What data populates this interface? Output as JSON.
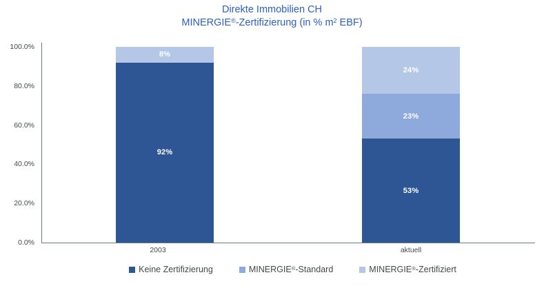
{
  "title": {
    "line1": "Direkte Immobilien CH",
    "line2_parts": [
      {
        "text": "MINERGIE"
      },
      {
        "sup": "®"
      },
      {
        "text": "-Zertifizierung (in % m"
      },
      {
        "sup": "2"
      },
      {
        "text": " EBF)"
      }
    ]
  },
  "legend": {
    "items": [
      {
        "color": "#2F5694",
        "parts": [
          {
            "text": "Keine Zertifizierung"
          }
        ]
      },
      {
        "color": "#8EA9DB",
        "parts": [
          {
            "text": "MINERGIE"
          },
          {
            "sup": "®"
          },
          {
            "text": "-Standard"
          }
        ]
      },
      {
        "color": "#B4C7E7",
        "parts": [
          {
            "text": "MINERGIE"
          },
          {
            "sup": "®"
          },
          {
            "text": "-Zertifiziert"
          }
        ]
      }
    ]
  },
  "colors": {
    "title": "#2B5EC6",
    "axis_line": "#6b7d78",
    "tick_text": "#414a46",
    "dark_blue": "#2F5694",
    "medium_blue": "#8EA9DB",
    "light_blue": "#B4C7E7"
  },
  "chart_data": {
    "type": "bar",
    "stacked": true,
    "title": "Direkte Immobilien CH MINERGIE®-Zertifizierung (in % m² EBF)",
    "categories": [
      "2003",
      "aktuell"
    ],
    "series": [
      {
        "name": "Keine Zertifizierung",
        "color": "#2F5694",
        "values": [
          92,
          53
        ],
        "labels": [
          "92%",
          "53%"
        ]
      },
      {
        "name": "MINERGIE®-Standard",
        "color": "#8EA9DB",
        "values": [
          0,
          23
        ],
        "labels": [
          "",
          "23%"
        ]
      },
      {
        "name": "MINERGIE®-Zertifiziert",
        "color": "#B4C7E7",
        "values": [
          8,
          24
        ],
        "labels": [
          "8%",
          "24%"
        ]
      }
    ],
    "xlabel": "",
    "ylabel": "",
    "ylim": [
      0,
      100
    ],
    "yticks": [
      "0.0%",
      "20.0%",
      "40.0%",
      "60.0%",
      "80.0%",
      "100.0%"
    ],
    "grid": false,
    "legend_position": "bottom"
  }
}
